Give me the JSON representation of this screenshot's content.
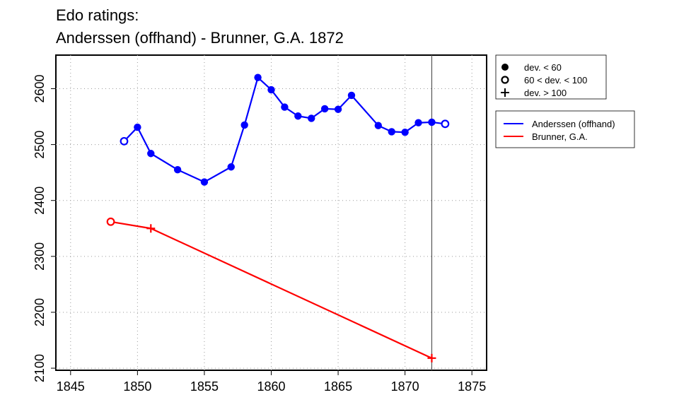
{
  "chart_data": {
    "type": "line",
    "title_lines": [
      "Edo ratings:",
      "Anderssen (offhand) - Brunner, G.A. 1872"
    ],
    "xlabel": "",
    "ylabel": "",
    "xlim": [
      1843.9,
      1876.1
    ],
    "ylim": [
      2096.3,
      2660
    ],
    "x_ticks": [
      1845,
      1850,
      1855,
      1860,
      1865,
      1870,
      1875
    ],
    "y_ticks": [
      2100,
      2200,
      2300,
      2400,
      2500,
      2600
    ],
    "grid": true,
    "marker_year": 1872,
    "series": [
      {
        "name": "Anderssen (offhand)",
        "color": "#0000ff",
        "points": [
          {
            "x": 1849,
            "y": 2506,
            "dev": "mid"
          },
          {
            "x": 1850,
            "y": 2531,
            "dev": "low"
          },
          {
            "x": 1851,
            "y": 2484,
            "dev": "low"
          },
          {
            "x": 1853,
            "y": 2455,
            "dev": "low"
          },
          {
            "x": 1855,
            "y": 2433,
            "dev": "low"
          },
          {
            "x": 1857,
            "y": 2460,
            "dev": "low"
          },
          {
            "x": 1858,
            "y": 2535,
            "dev": "low"
          },
          {
            "x": 1859,
            "y": 2620,
            "dev": "low"
          },
          {
            "x": 1860,
            "y": 2598,
            "dev": "low"
          },
          {
            "x": 1861,
            "y": 2567,
            "dev": "low"
          },
          {
            "x": 1862,
            "y": 2551,
            "dev": "low"
          },
          {
            "x": 1863,
            "y": 2547,
            "dev": "low"
          },
          {
            "x": 1864,
            "y": 2564,
            "dev": "low"
          },
          {
            "x": 1865,
            "y": 2563,
            "dev": "low"
          },
          {
            "x": 1866,
            "y": 2588,
            "dev": "low"
          },
          {
            "x": 1868,
            "y": 2534,
            "dev": "low"
          },
          {
            "x": 1869,
            "y": 2523,
            "dev": "low"
          },
          {
            "x": 1870,
            "y": 2522,
            "dev": "low"
          },
          {
            "x": 1871,
            "y": 2539,
            "dev": "low"
          },
          {
            "x": 1872,
            "y": 2540,
            "dev": "low"
          },
          {
            "x": 1873,
            "y": 2537,
            "dev": "mid"
          }
        ]
      },
      {
        "name": "Brunner, G.A.",
        "color": "#ff0000",
        "points": [
          {
            "x": 1848,
            "y": 2362,
            "dev": "mid"
          },
          {
            "x": 1851,
            "y": 2350,
            "dev": "high"
          },
          {
            "x": 1872,
            "y": 2118,
            "dev": "high"
          }
        ]
      }
    ],
    "dev_legend": [
      {
        "symbol": "filled",
        "label": "dev. < 60"
      },
      {
        "symbol": "open",
        "label": "60 < dev. < 100"
      },
      {
        "symbol": "plus",
        "label": "dev. > 100"
      }
    ],
    "legend_position": "right"
  }
}
